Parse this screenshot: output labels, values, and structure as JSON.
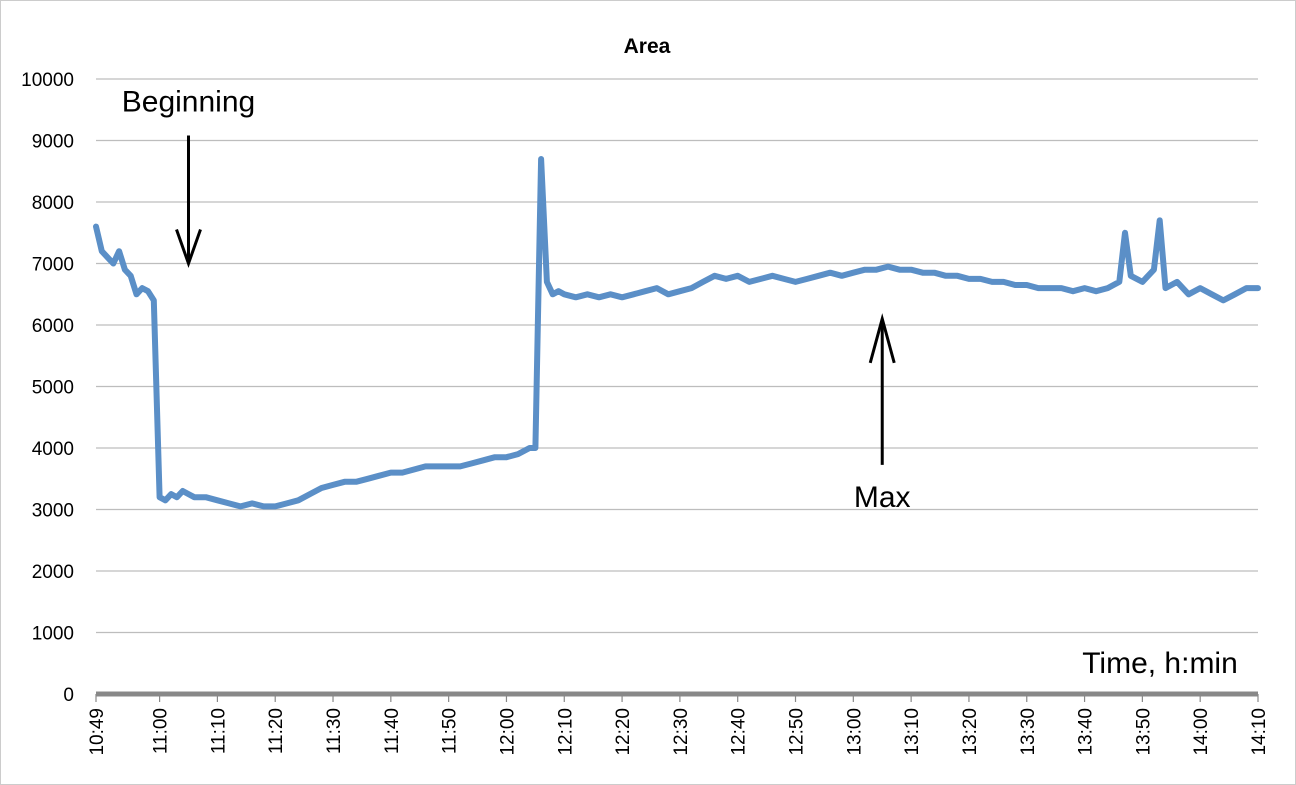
{
  "chart_data": {
    "type": "line",
    "title": "Area",
    "xlabel": "Time, h:min",
    "ylabel": "",
    "ylim": [
      0,
      10000
    ],
    "yticks": [
      0,
      1000,
      2000,
      3000,
      4000,
      5000,
      6000,
      7000,
      8000,
      9000,
      10000
    ],
    "xlim": [
      "10:49",
      "14:10"
    ],
    "xticks": [
      "10:49",
      "11:00",
      "11:10",
      "11:20",
      "11:30",
      "11:40",
      "11:50",
      "12:00",
      "12:10",
      "12:20",
      "12:30",
      "12:40",
      "12:50",
      "13:00",
      "13:10",
      "13:20",
      "13:30",
      "13:40",
      "13:50",
      "14:00",
      "14:10"
    ],
    "grid": "horizontal",
    "legend": "none",
    "colors": {
      "series": "#5b8fc7",
      "grid": "#bdbdbd",
      "axis": "#888888"
    },
    "series": [
      {
        "x": [
          "10:49",
          "10:50",
          "10:51",
          "10:52",
          "10:53",
          "10:54",
          "10:55",
          "10:56",
          "10:57",
          "10:58",
          "10:59",
          "11:00",
          "11:01",
          "11:02",
          "11:03",
          "11:04",
          "11:05",
          "11:06",
          "11:08",
          "11:10",
          "11:12",
          "11:14",
          "11:16",
          "11:18",
          "11:20",
          "11:22",
          "11:24",
          "11:26",
          "11:28",
          "11:30",
          "11:32",
          "11:34",
          "11:36",
          "11:38",
          "11:40",
          "11:42",
          "11:44",
          "11:46",
          "11:48",
          "11:50",
          "11:52",
          "11:54",
          "11:56",
          "11:58",
          "12:00",
          "12:02",
          "12:04",
          "12:05",
          "12:06",
          "12:07",
          "12:08",
          "12:09",
          "12:10",
          "12:12",
          "12:14",
          "12:16",
          "12:18",
          "12:20",
          "12:22",
          "12:24",
          "12:26",
          "12:28",
          "12:30",
          "12:32",
          "12:34",
          "12:36",
          "12:38",
          "12:40",
          "12:42",
          "12:44",
          "12:46",
          "12:48",
          "12:50",
          "12:52",
          "12:54",
          "12:56",
          "12:58",
          "13:00",
          "13:02",
          "13:04",
          "13:06",
          "13:08",
          "13:10",
          "13:12",
          "13:14",
          "13:16",
          "13:18",
          "13:20",
          "13:22",
          "13:24",
          "13:26",
          "13:28",
          "13:30",
          "13:32",
          "13:34",
          "13:36",
          "13:38",
          "13:40",
          "13:42",
          "13:44",
          "13:46",
          "13:47",
          "13:48",
          "13:50",
          "13:52",
          "13:53",
          "13:54",
          "13:56",
          "13:58",
          "14:00",
          "14:02",
          "14:04",
          "14:06",
          "14:08",
          "14:10"
        ],
        "values": [
          7600,
          7200,
          7100,
          7000,
          7200,
          6900,
          6800,
          6500,
          6600,
          6550,
          6400,
          3200,
          3150,
          3250,
          3200,
          3300,
          3250,
          3200,
          3200,
          3150,
          3100,
          3050,
          3100,
          3050,
          3050,
          3100,
          3150,
          3250,
          3350,
          3400,
          3450,
          3450,
          3500,
          3550,
          3600,
          3600,
          3650,
          3700,
          3700,
          3700,
          3700,
          3750,
          3800,
          3850,
          3850,
          3900,
          4000,
          4000,
          8700,
          6700,
          6500,
          6550,
          6500,
          6450,
          6500,
          6450,
          6500,
          6450,
          6500,
          6550,
          6600,
          6500,
          6550,
          6600,
          6700,
          6800,
          6750,
          6800,
          6700,
          6750,
          6800,
          6750,
          6700,
          6750,
          6800,
          6850,
          6800,
          6850,
          6900,
          6900,
          6950,
          6900,
          6900,
          6850,
          6850,
          6800,
          6800,
          6750,
          6750,
          6700,
          6700,
          6650,
          6650,
          6600,
          6600,
          6600,
          6550,
          6600,
          6550,
          6600,
          6700,
          7500,
          6800,
          6700,
          6900,
          7700,
          6600,
          6700,
          6500,
          6600,
          6500,
          6400,
          6500,
          6600,
          6600
        ]
      }
    ],
    "annotations": [
      {
        "text": "Beginning",
        "x": "11:05",
        "y": 7000,
        "arrow": "down"
      },
      {
        "text": "Max",
        "x": "13:05",
        "y": 6100,
        "arrow": "up"
      }
    ]
  }
}
